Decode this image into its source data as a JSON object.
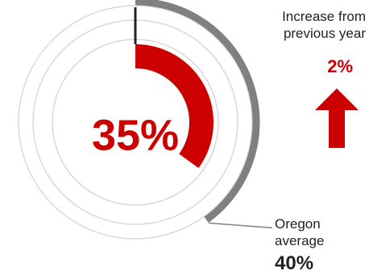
{
  "chart_data": {
    "type": "radial-progress",
    "value_label": "35%",
    "value": 35,
    "comparison": {
      "label_line1": "Oregon",
      "label_line2": "average",
      "value_label": "40%",
      "value": 40
    },
    "change": {
      "label_line1": "Increase from",
      "label_line2": "previous year",
      "value_label": "2%",
      "direction": "up"
    }
  },
  "colors": {
    "value": "#cc0000",
    "comparison": "#808080",
    "rings": "#d9d9d9",
    "start_tick": "#222222",
    "arrow": "#cc0000",
    "text": "#222222"
  },
  "icons": {
    "change_arrow": "arrow-up-icon"
  }
}
